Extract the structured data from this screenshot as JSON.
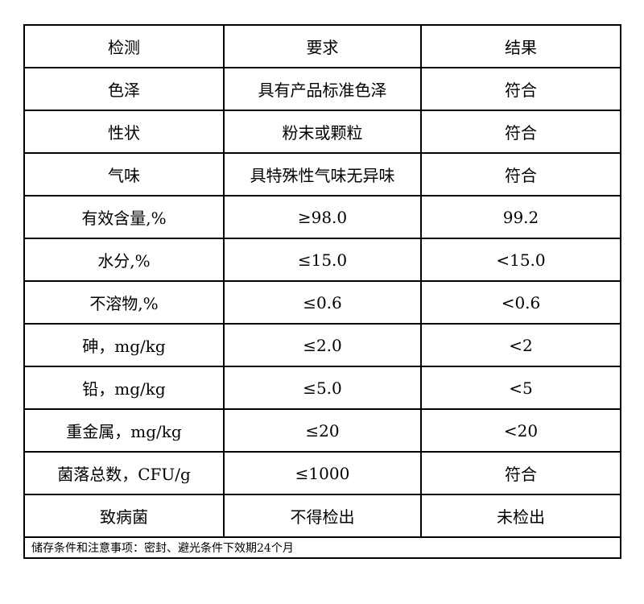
{
  "table": {
    "headers": [
      "检测",
      "要求",
      "结果"
    ],
    "rows": [
      [
        "色泽",
        "具有产品标准色泽",
        "符合"
      ],
      [
        "性状",
        "粉末或颗粒",
        "符合"
      ],
      [
        "气味",
        "具特殊性气味无异味",
        "符合"
      ],
      [
        "有效含量,%",
        "≥98.0",
        "99.2"
      ],
      [
        "水分,%",
        "≤15.0",
        "<15.0"
      ],
      [
        "不溶物,%",
        "≤0.6",
        "<0.6"
      ],
      [
        "砷，mg/kg",
        "≤2.0",
        "<2"
      ],
      [
        "铅，mg/kg",
        "≤5.0",
        "<5"
      ],
      [
        "重金属，mg/kg",
        "≤20",
        "<20"
      ],
      [
        "菌落总数，CFU/g",
        "≤1000",
        "符合"
      ],
      [
        "致病菌",
        "不得检出",
        "未检出"
      ]
    ],
    "note": "储存条件和注意事项：密封、避光条件下效期24个月"
  }
}
